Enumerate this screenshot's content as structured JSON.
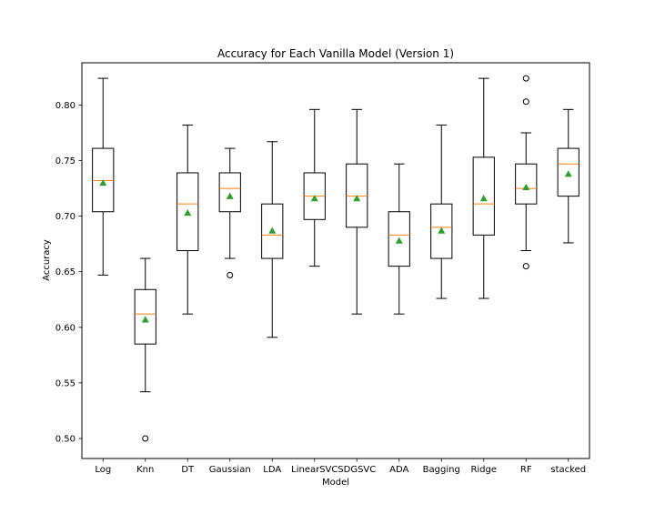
{
  "chart_data": {
    "type": "boxplot",
    "title": "Accuracy for Each Vanilla Model (Version 1)",
    "xlabel": "Model",
    "ylabel": "Accuracy",
    "ylim": [
      0.482,
      0.838
    ],
    "yticks": [
      0.5,
      0.55,
      0.6,
      0.65,
      0.7,
      0.75,
      0.8
    ],
    "ytick_labels": [
      "0.50",
      "0.55",
      "0.60",
      "0.65",
      "0.70",
      "0.75",
      "0.80"
    ],
    "grid": false,
    "colors": {
      "box": "#000000",
      "median": "#ff7f0e",
      "mean": "#2ca02c",
      "outlier": "#000000"
    },
    "categories": [
      "Log",
      "Knn",
      "DT",
      "Gaussian",
      "LDA",
      "LinearSVC",
      "SDGSVC",
      "ADA",
      "Bagging",
      "Ridge",
      "RF",
      "stacked"
    ],
    "boxes": [
      {
        "label": "Log",
        "whislo": 0.647,
        "q1": 0.704,
        "med": 0.732,
        "q3": 0.761,
        "whishi": 0.824,
        "mean": 0.73,
        "fliers": []
      },
      {
        "label": "Knn",
        "whislo": 0.542,
        "q1": 0.585,
        "med": 0.612,
        "q3": 0.634,
        "whishi": 0.662,
        "mean": 0.607,
        "fliers": [
          0.5
        ]
      },
      {
        "label": "DT",
        "whislo": 0.612,
        "q1": 0.669,
        "med": 0.711,
        "q3": 0.739,
        "whishi": 0.782,
        "mean": 0.703,
        "fliers": []
      },
      {
        "label": "Gaussian",
        "whislo": 0.662,
        "q1": 0.704,
        "med": 0.725,
        "q3": 0.739,
        "whishi": 0.761,
        "mean": 0.718,
        "fliers": [
          0.647
        ]
      },
      {
        "label": "LDA",
        "whislo": 0.591,
        "q1": 0.662,
        "med": 0.683,
        "q3": 0.711,
        "whishi": 0.767,
        "mean": 0.687,
        "fliers": []
      },
      {
        "label": "LinearSVC",
        "whislo": 0.655,
        "q1": 0.697,
        "med": 0.718,
        "q3": 0.739,
        "whishi": 0.796,
        "mean": 0.716,
        "fliers": []
      },
      {
        "label": "SDGSVC",
        "whislo": 0.612,
        "q1": 0.69,
        "med": 0.718,
        "q3": 0.747,
        "whishi": 0.796,
        "mean": 0.716,
        "fliers": []
      },
      {
        "label": "ADA",
        "whislo": 0.612,
        "q1": 0.655,
        "med": 0.683,
        "q3": 0.704,
        "whishi": 0.747,
        "mean": 0.678,
        "fliers": []
      },
      {
        "label": "Bagging",
        "whislo": 0.626,
        "q1": 0.662,
        "med": 0.69,
        "q3": 0.711,
        "whishi": 0.782,
        "mean": 0.687,
        "fliers": []
      },
      {
        "label": "Ridge",
        "whislo": 0.626,
        "q1": 0.683,
        "med": 0.711,
        "q3": 0.753,
        "whishi": 0.824,
        "mean": 0.716,
        "fliers": []
      },
      {
        "label": "RF",
        "whislo": 0.669,
        "q1": 0.711,
        "med": 0.725,
        "q3": 0.747,
        "whishi": 0.775,
        "mean": 0.726,
        "fliers": [
          0.655,
          0.803,
          0.824
        ]
      },
      {
        "label": "stacked",
        "whislo": 0.676,
        "q1": 0.718,
        "med": 0.747,
        "q3": 0.761,
        "whishi": 0.796,
        "mean": 0.738,
        "fliers": []
      }
    ]
  }
}
